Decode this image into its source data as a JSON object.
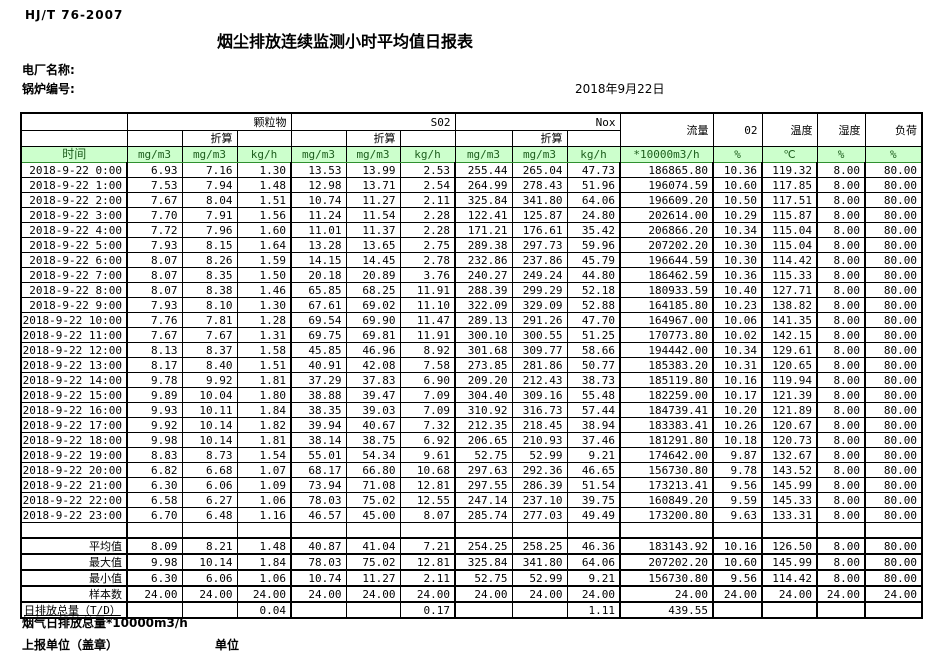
{
  "header": {
    "standard_no": "HJ/T 76-2007",
    "title": "烟尘排放连续监测小时平均值日报表",
    "plant_label": "电厂名称:",
    "boiler_label": "锅炉编号:",
    "date": "2018年9月22日"
  },
  "table": {
    "time_label": "时间",
    "converted_label": "折算",
    "groups": [
      "颗粒物",
      "S02",
      "Nox"
    ],
    "scalar_groups": [
      "流量",
      "02",
      "温度",
      "湿度",
      "负荷"
    ],
    "units": [
      "mg/m3",
      "mg/m3",
      "kg/h",
      "mg/m3",
      "mg/m3",
      "kg/h",
      "mg/m3",
      "mg/m3",
      "kg/h",
      "*10000m3/h",
      "%",
      "℃",
      "%",
      "%"
    ],
    "rows": [
      [
        "2018-9-22 0:00",
        "6.93",
        "7.16",
        "1.30",
        "13.53",
        "13.99",
        "2.53",
        "255.44",
        "265.04",
        "47.73",
        "186865.80",
        "10.36",
        "119.32",
        "8.00",
        "80.00"
      ],
      [
        "2018-9-22 1:00",
        "7.53",
        "7.94",
        "1.48",
        "12.98",
        "13.71",
        "2.54",
        "264.99",
        "278.43",
        "51.96",
        "196074.59",
        "10.60",
        "117.85",
        "8.00",
        "80.00"
      ],
      [
        "2018-9-22 2:00",
        "7.67",
        "8.04",
        "1.51",
        "10.74",
        "11.27",
        "2.11",
        "325.84",
        "341.80",
        "64.06",
        "196609.20",
        "10.50",
        "117.51",
        "8.00",
        "80.00"
      ],
      [
        "2018-9-22 3:00",
        "7.70",
        "7.91",
        "1.56",
        "11.24",
        "11.54",
        "2.28",
        "122.41",
        "125.87",
        "24.80",
        "202614.00",
        "10.29",
        "115.87",
        "8.00",
        "80.00"
      ],
      [
        "2018-9-22 4:00",
        "7.72",
        "7.96",
        "1.60",
        "11.01",
        "11.37",
        "2.28",
        "171.21",
        "176.61",
        "35.42",
        "206866.20",
        "10.34",
        "115.04",
        "8.00",
        "80.00"
      ],
      [
        "2018-9-22 5:00",
        "7.93",
        "8.15",
        "1.64",
        "13.28",
        "13.65",
        "2.75",
        "289.38",
        "297.73",
        "59.96",
        "207202.20",
        "10.30",
        "115.04",
        "8.00",
        "80.00"
      ],
      [
        "2018-9-22 6:00",
        "8.07",
        "8.26",
        "1.59",
        "14.15",
        "14.45",
        "2.78",
        "232.86",
        "237.86",
        "45.79",
        "196644.59",
        "10.30",
        "114.42",
        "8.00",
        "80.00"
      ],
      [
        "2018-9-22 7:00",
        "8.07",
        "8.35",
        "1.50",
        "20.18",
        "20.89",
        "3.76",
        "240.27",
        "249.24",
        "44.80",
        "186462.59",
        "10.36",
        "115.33",
        "8.00",
        "80.00"
      ],
      [
        "2018-9-22 8:00",
        "8.07",
        "8.38",
        "1.46",
        "65.85",
        "68.25",
        "11.91",
        "288.39",
        "299.29",
        "52.18",
        "180933.59",
        "10.40",
        "127.71",
        "8.00",
        "80.00"
      ],
      [
        "2018-9-22 9:00",
        "7.93",
        "8.10",
        "1.30",
        "67.61",
        "69.02",
        "11.10",
        "322.09",
        "329.09",
        "52.88",
        "164185.80",
        "10.23",
        "138.82",
        "8.00",
        "80.00"
      ],
      [
        "2018-9-22 10:00",
        "7.76",
        "7.81",
        "1.28",
        "69.54",
        "69.90",
        "11.47",
        "289.13",
        "291.26",
        "47.70",
        "164967.00",
        "10.06",
        "141.35",
        "8.00",
        "80.00"
      ],
      [
        "2018-9-22 11:00",
        "7.67",
        "7.67",
        "1.31",
        "69.75",
        "69.81",
        "11.91",
        "300.10",
        "300.55",
        "51.25",
        "170773.80",
        "10.02",
        "142.15",
        "8.00",
        "80.00"
      ],
      [
        "2018-9-22 12:00",
        "8.13",
        "8.37",
        "1.58",
        "45.85",
        "46.96",
        "8.92",
        "301.68",
        "309.77",
        "58.66",
        "194442.00",
        "10.34",
        "129.61",
        "8.00",
        "80.00"
      ],
      [
        "2018-9-22 13:00",
        "8.17",
        "8.40",
        "1.51",
        "40.91",
        "42.08",
        "7.58",
        "273.85",
        "281.86",
        "50.77",
        "185383.20",
        "10.31",
        "120.65",
        "8.00",
        "80.00"
      ],
      [
        "2018-9-22 14:00",
        "9.78",
        "9.92",
        "1.81",
        "37.29",
        "37.83",
        "6.90",
        "209.20",
        "212.43",
        "38.73",
        "185119.80",
        "10.16",
        "119.94",
        "8.00",
        "80.00"
      ],
      [
        "2018-9-22 15:00",
        "9.89",
        "10.04",
        "1.80",
        "38.88",
        "39.47",
        "7.09",
        "304.40",
        "309.16",
        "55.48",
        "182259.00",
        "10.17",
        "121.39",
        "8.00",
        "80.00"
      ],
      [
        "2018-9-22 16:00",
        "9.93",
        "10.11",
        "1.84",
        "38.35",
        "39.03",
        "7.09",
        "310.92",
        "316.73",
        "57.44",
        "184739.41",
        "10.20",
        "121.89",
        "8.00",
        "80.00"
      ],
      [
        "2018-9-22 17:00",
        "9.92",
        "10.14",
        "1.82",
        "39.94",
        "40.67",
        "7.32",
        "212.35",
        "218.45",
        "38.94",
        "183383.41",
        "10.26",
        "120.67",
        "8.00",
        "80.00"
      ],
      [
        "2018-9-22 18:00",
        "9.98",
        "10.14",
        "1.81",
        "38.14",
        "38.75",
        "6.92",
        "206.65",
        "210.93",
        "37.46",
        "181291.80",
        "10.18",
        "120.73",
        "8.00",
        "80.00"
      ],
      [
        "2018-9-22 19:00",
        "8.83",
        "8.73",
        "1.54",
        "55.01",
        "54.34",
        "9.61",
        "52.75",
        "52.99",
        "9.21",
        "174642.00",
        "9.87",
        "132.67",
        "8.00",
        "80.00"
      ],
      [
        "2018-9-22 20:00",
        "6.82",
        "6.68",
        "1.07",
        "68.17",
        "66.80",
        "10.68",
        "297.63",
        "292.36",
        "46.65",
        "156730.80",
        "9.78",
        "143.52",
        "8.00",
        "80.00"
      ],
      [
        "2018-9-22 21:00",
        "6.30",
        "6.06",
        "1.09",
        "73.94",
        "71.08",
        "12.81",
        "297.55",
        "286.39",
        "51.54",
        "173213.41",
        "9.56",
        "145.99",
        "8.00",
        "80.00"
      ],
      [
        "2018-9-22 22:00",
        "6.58",
        "6.27",
        "1.06",
        "78.03",
        "75.02",
        "12.55",
        "247.14",
        "237.10",
        "39.75",
        "160849.20",
        "9.59",
        "145.33",
        "8.00",
        "80.00"
      ],
      [
        "2018-9-22 23:00",
        "6.70",
        "6.48",
        "1.16",
        "46.57",
        "45.00",
        "8.07",
        "285.74",
        "277.03",
        "49.49",
        "173200.80",
        "9.63",
        "133.31",
        "8.00",
        "80.00"
      ]
    ],
    "summary_rows": [
      {
        "label": "平均值",
        "values": [
          "8.09",
          "8.21",
          "1.48",
          "40.87",
          "41.04",
          "7.21",
          "254.25",
          "258.25",
          "46.36",
          "183143.92",
          "10.16",
          "126.50",
          "8.00",
          "80.00"
        ]
      },
      {
        "label": "最大值",
        "values": [
          "9.98",
          "10.14",
          "1.84",
          "78.03",
          "75.02",
          "12.81",
          "325.84",
          "341.80",
          "64.06",
          "207202.20",
          "10.60",
          "145.99",
          "8.00",
          "80.00"
        ]
      },
      {
        "label": "最小值",
        "values": [
          "6.30",
          "6.06",
          "1.06",
          "10.74",
          "11.27",
          "2.11",
          "52.75",
          "52.99",
          "9.21",
          "156730.80",
          "9.56",
          "114.42",
          "8.00",
          "80.00"
        ]
      },
      {
        "label": "样本数",
        "values": [
          "24.00",
          "24.00",
          "24.00",
          "24.00",
          "24.00",
          "24.00",
          "24.00",
          "24.00",
          "24.00",
          "24.00",
          "24.00",
          "24.00",
          "24.00",
          "24.00"
        ]
      },
      {
        "label": "日排放总量（T/D）",
        "values": [
          "",
          "",
          "0.04",
          "",
          "",
          "0.17",
          "",
          "",
          "1.11",
          "439.55",
          "",
          "",
          "",
          ""
        ]
      }
    ]
  },
  "footer": {
    "line1": "烟气日排放总量*10000m3/h",
    "line2": "上报单位（盖章）",
    "line3": "单位"
  },
  "colors": {
    "header_row_bg": "#ccffcc",
    "header_row_text": "#1d5e1d",
    "grid_line": "#000000"
  }
}
